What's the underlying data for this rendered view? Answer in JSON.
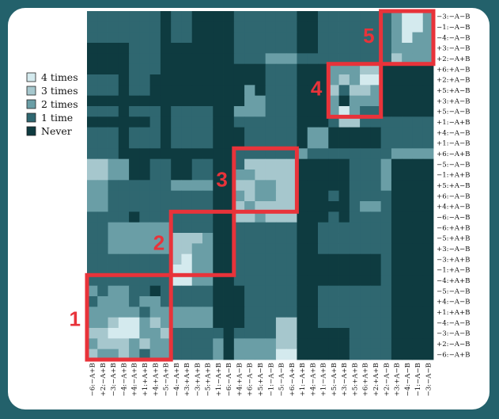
{
  "chart_data": {
    "type": "heatmap",
    "legend": {
      "placement": "top-left",
      "entries": [
        {
          "label": "4 times",
          "level": 4,
          "color": "#d4eaee"
        },
        {
          "label": "3 times",
          "level": 3,
          "color": "#a6c7cd"
        },
        {
          "label": "2 times",
          "level": 2,
          "color": "#6a9ea6"
        },
        {
          "label": "1 time",
          "level": 1,
          "color": "#2f6770"
        },
        {
          "label": "Never",
          "level": 0,
          "color": "#0e3b40"
        }
      ]
    },
    "x_labels": [
      "−6:−A+B",
      "+2:−A+B",
      "−3:−A+B",
      "−4:−A+B",
      "+4:−A+B",
      "+1:+A+B",
      "+4:+A+B",
      "−5:−A+B",
      "−4:−A+B",
      "+3:+A+B",
      "−3:+A+B",
      "−5:+A+B",
      "+1:−A+B",
      "−6:−A−B",
      "+4:+A−B",
      "+6:−A−B",
      "+5:+A−B",
      "−1:−A−B",
      "−5:−A−B",
      "+6:−A+B",
      "+1:−A+B",
      "+4:−A+B",
      "+1:−A+B",
      "+5:−A+B",
      "+3:−A+B",
      "+5:+A+B",
      "+6:+A+B",
      "+2:+A+B",
      "+2:−A−B",
      "+3:+A−B",
      "−4:−A−B",
      "−1:−A−B",
      "−3:−A−B"
    ],
    "y_labels": [
      "−3:−A−B",
      "−1:−A−B",
      "−4:−A−B",
      "+3:−A−B",
      "+2:−A+B",
      "+6:+A−B",
      "+2:+A−B",
      "+5:+A−B",
      "+3:+A−B",
      "+5:−A−B",
      "+1:−A+B",
      "+4:−A−B",
      "+1:−A−B",
      "+6:−A+B",
      "−5:−A−B",
      "−1:+A+B",
      "+5:+A−B",
      "+6:−A−B",
      "+4:+A−B",
      "−6:−A−B",
      "−6:+A+B",
      "−5:+A+B",
      "+3:−A−B",
      "−3:+A+B",
      "−1:+A−B",
      "−4:+A+B",
      "−5:−A−B",
      "+4:−A−B",
      "+1:+A+B",
      "−4:−A−B",
      "−3:−A−B",
      "+2:−A−B",
      "−6:−A+B"
    ],
    "value_grid": [
      [
        1,
        1,
        1,
        1,
        1,
        1,
        1,
        0,
        1,
        1,
        0,
        0,
        0,
        0,
        1,
        1,
        1,
        1,
        1,
        1,
        0,
        0,
        1,
        1,
        1,
        1,
        1,
        1,
        1,
        2,
        4,
        4,
        2
      ],
      [
        1,
        1,
        1,
        1,
        1,
        1,
        1,
        0,
        1,
        1,
        0,
        0,
        0,
        0,
        1,
        1,
        1,
        1,
        1,
        1,
        0,
        0,
        1,
        1,
        1,
        1,
        1,
        1,
        1,
        2,
        4,
        4,
        2
      ],
      [
        1,
        1,
        1,
        1,
        1,
        1,
        1,
        0,
        1,
        1,
        0,
        0,
        0,
        0,
        1,
        1,
        1,
        1,
        1,
        1,
        0,
        0,
        1,
        1,
        1,
        1,
        1,
        1,
        1,
        2,
        4,
        2,
        2
      ],
      [
        0,
        0,
        0,
        0,
        1,
        1,
        1,
        0,
        0,
        0,
        0,
        0,
        0,
        0,
        1,
        1,
        1,
        1,
        1,
        1,
        0,
        0,
        1,
        1,
        1,
        1,
        1,
        1,
        1,
        2,
        2,
        2,
        2
      ],
      [
        0,
        0,
        0,
        0,
        1,
        1,
        1,
        0,
        0,
        0,
        0,
        0,
        0,
        0,
        1,
        1,
        1,
        2,
        2,
        2,
        1,
        1,
        1,
        1,
        1,
        1,
        1,
        1,
        1,
        3,
        2,
        2,
        2
      ],
      [
        0,
        0,
        0,
        0,
        1,
        1,
        1,
        0,
        0,
        0,
        0,
        0,
        0,
        0,
        0,
        0,
        0,
        1,
        1,
        1,
        0,
        0,
        0,
        2,
        2,
        2,
        3,
        3,
        0,
        0,
        0,
        0,
        0
      ],
      [
        1,
        1,
        1,
        0,
        1,
        1,
        0,
        0,
        0,
        0,
        0,
        0,
        0,
        0,
        0,
        0,
        0,
        1,
        1,
        1,
        0,
        0,
        0,
        2,
        3,
        2,
        4,
        4,
        0,
        0,
        0,
        0,
        0
      ],
      [
        1,
        1,
        1,
        0,
        1,
        1,
        0,
        0,
        0,
        0,
        0,
        0,
        0,
        0,
        0,
        2,
        0,
        1,
        1,
        1,
        0,
        0,
        0,
        3,
        1,
        3,
        3,
        2,
        0,
        0,
        0,
        0,
        0
      ],
      [
        0,
        0,
        0,
        0,
        0,
        0,
        0,
        0,
        0,
        0,
        0,
        0,
        0,
        0,
        0,
        2,
        2,
        1,
        1,
        1,
        0,
        0,
        0,
        2,
        0,
        2,
        2,
        2,
        0,
        0,
        0,
        0,
        0
      ],
      [
        1,
        1,
        1,
        0,
        1,
        1,
        1,
        0,
        1,
        1,
        1,
        1,
        0,
        0,
        2,
        2,
        2,
        1,
        1,
        1,
        0,
        0,
        0,
        2,
        4,
        2,
        1,
        1,
        0,
        0,
        0,
        0,
        0
      ],
      [
        0,
        0,
        0,
        0,
        0,
        0,
        1,
        0,
        1,
        1,
        1,
        1,
        0,
        0,
        1,
        1,
        1,
        1,
        1,
        1,
        0,
        0,
        0,
        1,
        3,
        3,
        1,
        1,
        1,
        1,
        1,
        1,
        1
      ],
      [
        1,
        1,
        1,
        0,
        1,
        1,
        1,
        0,
        1,
        1,
        1,
        1,
        0,
        0,
        0,
        1,
        1,
        1,
        1,
        1,
        0,
        2,
        2,
        0,
        0,
        0,
        0,
        0,
        1,
        1,
        1,
        1,
        1
      ],
      [
        1,
        1,
        1,
        0,
        1,
        1,
        1,
        0,
        1,
        1,
        1,
        1,
        0,
        0,
        0,
        1,
        1,
        1,
        1,
        1,
        0,
        2,
        2,
        0,
        0,
        0,
        0,
        0,
        1,
        1,
        1,
        1,
        1
      ],
      [
        1,
        1,
        1,
        0,
        0,
        0,
        0,
        0,
        0,
        0,
        0,
        0,
        0,
        0,
        1,
        1,
        1,
        1,
        1,
        1,
        2,
        1,
        1,
        1,
        1,
        1,
        1,
        1,
        1,
        2,
        2,
        2,
        2
      ],
      [
        3,
        3,
        2,
        2,
        0,
        0,
        1,
        1,
        0,
        0,
        1,
        1,
        0,
        0,
        1,
        3,
        3,
        3,
        3,
        3,
        0,
        0,
        0,
        0,
        0,
        1,
        1,
        1,
        2,
        0,
        0,
        0,
        0
      ],
      [
        3,
        3,
        2,
        2,
        0,
        0,
        1,
        1,
        0,
        0,
        1,
        1,
        0,
        0,
        2,
        2,
        3,
        3,
        3,
        3,
        0,
        0,
        0,
        0,
        0,
        1,
        1,
        1,
        2,
        0,
        0,
        0,
        0
      ],
      [
        2,
        2,
        1,
        1,
        1,
        1,
        1,
        1,
        2,
        2,
        2,
        2,
        0,
        0,
        3,
        3,
        2,
        2,
        3,
        3,
        0,
        0,
        0,
        0,
        0,
        1,
        1,
        1,
        2,
        0,
        0,
        0,
        0
      ],
      [
        2,
        2,
        1,
        1,
        1,
        1,
        1,
        1,
        1,
        1,
        1,
        1,
        0,
        0,
        2,
        3,
        2,
        2,
        3,
        3,
        0,
        0,
        0,
        1,
        0,
        1,
        1,
        1,
        1,
        0,
        0,
        0,
        0
      ],
      [
        2,
        2,
        1,
        1,
        1,
        1,
        1,
        1,
        1,
        1,
        1,
        1,
        0,
        0,
        3,
        2,
        3,
        3,
        3,
        3,
        0,
        0,
        0,
        0,
        0,
        1,
        2,
        2,
        1,
        0,
        0,
        0,
        0
      ],
      [
        1,
        1,
        1,
        1,
        0,
        1,
        1,
        1,
        1,
        1,
        1,
        1,
        0,
        0,
        3,
        3,
        2,
        3,
        3,
        3,
        0,
        0,
        0,
        1,
        0,
        1,
        1,
        1,
        1,
        0,
        0,
        0,
        0
      ],
      [
        1,
        1,
        2,
        2,
        2,
        2,
        2,
        2,
        1,
        1,
        1,
        1,
        0,
        0,
        1,
        1,
        1,
        1,
        1,
        1,
        0,
        0,
        1,
        1,
        1,
        1,
        1,
        1,
        1,
        0,
        0,
        0,
        0
      ],
      [
        1,
        1,
        2,
        2,
        2,
        2,
        2,
        2,
        3,
        3,
        3,
        2,
        0,
        0,
        1,
        1,
        1,
        1,
        1,
        1,
        0,
        0,
        1,
        1,
        1,
        1,
        1,
        1,
        1,
        0,
        0,
        0,
        0
      ],
      [
        1,
        1,
        2,
        2,
        2,
        2,
        2,
        2,
        3,
        3,
        2,
        2,
        0,
        0,
        1,
        1,
        1,
        1,
        1,
        1,
        0,
        0,
        1,
        1,
        1,
        1,
        1,
        1,
        1,
        0,
        0,
        0,
        0
      ],
      [
        1,
        1,
        1,
        1,
        1,
        1,
        1,
        1,
        3,
        4,
        2,
        2,
        0,
        0,
        1,
        1,
        1,
        1,
        1,
        1,
        0,
        0,
        0,
        0,
        0,
        0,
        0,
        0,
        1,
        0,
        0,
        0,
        0
      ],
      [
        1,
        1,
        1,
        1,
        1,
        1,
        1,
        1,
        4,
        4,
        2,
        2,
        0,
        0,
        1,
        1,
        1,
        1,
        1,
        1,
        0,
        0,
        0,
        0,
        0,
        0,
        0,
        0,
        1,
        0,
        0,
        0,
        0
      ],
      [
        1,
        1,
        1,
        1,
        1,
        1,
        1,
        1,
        4,
        4,
        2,
        2,
        0,
        0,
        1,
        1,
        1,
        1,
        1,
        1,
        0,
        0,
        0,
        0,
        0,
        0,
        0,
        0,
        1,
        0,
        0,
        0,
        0
      ],
      [
        2,
        1,
        2,
        2,
        1,
        1,
        0,
        1,
        1,
        1,
        1,
        1,
        0,
        0,
        0,
        1,
        1,
        1,
        1,
        1,
        0,
        0,
        1,
        1,
        1,
        1,
        1,
        1,
        1,
        0,
        0,
        0,
        0
      ],
      [
        1,
        2,
        2,
        2,
        1,
        2,
        2,
        1,
        1,
        1,
        1,
        1,
        0,
        0,
        0,
        1,
        1,
        1,
        1,
        1,
        0,
        0,
        1,
        1,
        1,
        1,
        1,
        1,
        1,
        0,
        0,
        0,
        0
      ],
      [
        2,
        2,
        2,
        2,
        2,
        1,
        2,
        2,
        2,
        2,
        2,
        2,
        0,
        0,
        0,
        1,
        1,
        1,
        1,
        1,
        0,
        0,
        1,
        1,
        1,
        1,
        1,
        1,
        1,
        0,
        0,
        0,
        0
      ],
      [
        2,
        2,
        3,
        4,
        4,
        2,
        3,
        2,
        2,
        2,
        2,
        2,
        0,
        0,
        0,
        1,
        1,
        1,
        3,
        3,
        0,
        0,
        1,
        1,
        1,
        1,
        1,
        1,
        1,
        0,
        0,
        0,
        0
      ],
      [
        3,
        3,
        4,
        4,
        4,
        2,
        2,
        3,
        1,
        1,
        1,
        1,
        1,
        0,
        1,
        1,
        1,
        1,
        3,
        3,
        0,
        0,
        0,
        0,
        0,
        1,
        1,
        1,
        1,
        0,
        0,
        0,
        0
      ],
      [
        2,
        3,
        3,
        3,
        2,
        3,
        2,
        2,
        1,
        1,
        1,
        1,
        2,
        0,
        2,
        2,
        2,
        2,
        3,
        3,
        0,
        0,
        0,
        0,
        0,
        1,
        1,
        1,
        1,
        0,
        0,
        0,
        0
      ],
      [
        3,
        2,
        2,
        3,
        2,
        1,
        2,
        2,
        1,
        1,
        1,
        1,
        2,
        0,
        2,
        2,
        2,
        2,
        4,
        4,
        0,
        0,
        0,
        0,
        0,
        1,
        1,
        1,
        1,
        0,
        0,
        0,
        0
      ]
    ],
    "highlight_blocks": [
      {
        "label": "1",
        "start": 0,
        "size": 8
      },
      {
        "label": "2",
        "start": 8,
        "size": 6
      },
      {
        "label": "3",
        "start": 14,
        "size": 6
      },
      {
        "label": "4",
        "start": 23,
        "size": 5
      },
      {
        "label": "5",
        "start": 28,
        "size": 5
      }
    ],
    "highlight_color": "#e8333a"
  }
}
